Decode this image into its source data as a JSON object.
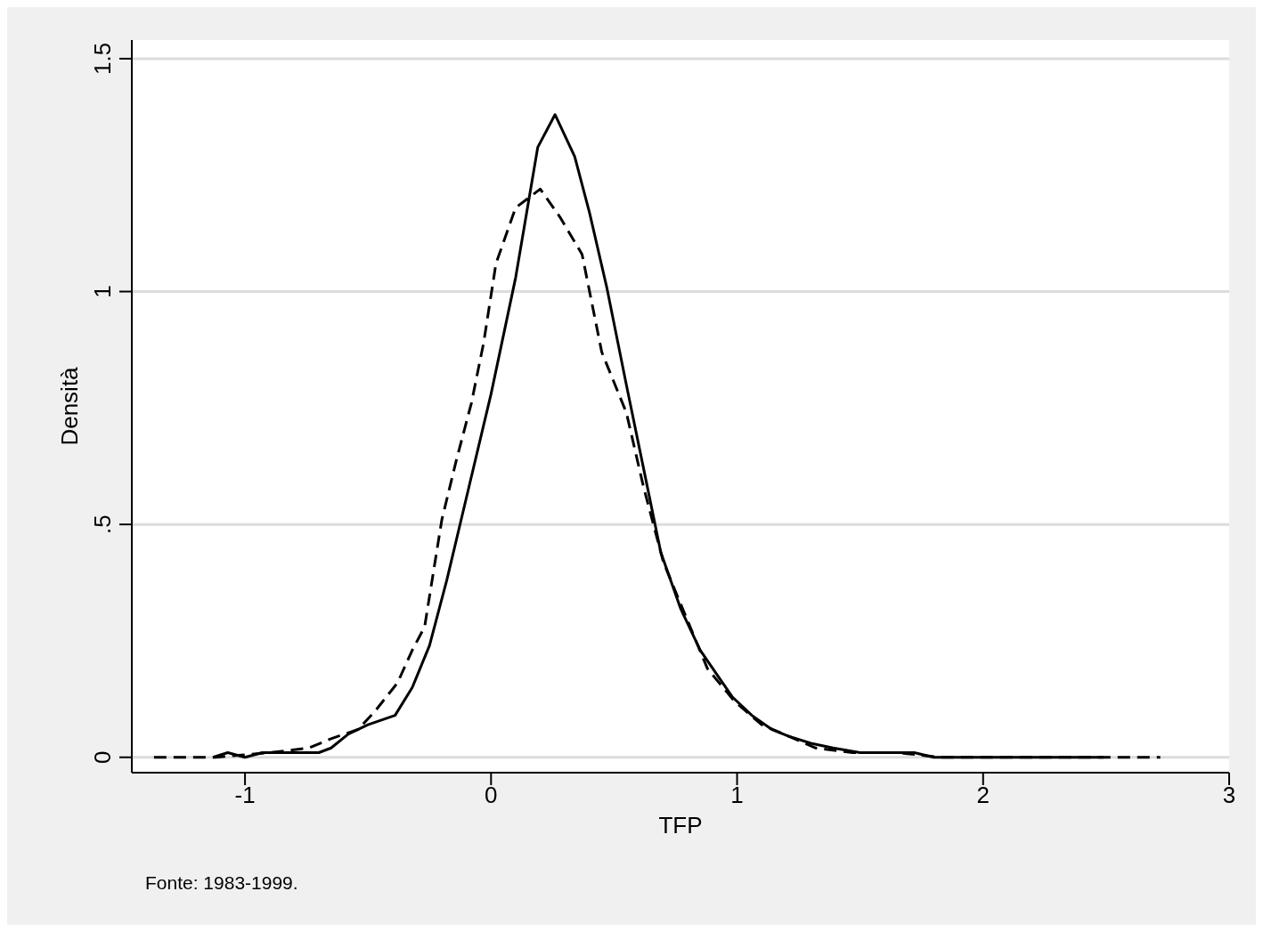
{
  "chart_data": {
    "type": "line",
    "xlabel": "TFP",
    "ylabel": "Densità",
    "annotations": [
      "Fonte: 1983-1999."
    ],
    "xlim": [
      -1.46,
      3
    ],
    "xticks": [
      -1,
      0,
      1,
      2,
      3
    ],
    "ylim": [
      -0.033,
      1.54
    ],
    "yticks": [
      0,
      {
        "value": 0.5,
        "label": ".5"
      },
      1,
      1.5
    ],
    "grid": "y",
    "marker": "none",
    "series": [
      {
        "color": "#000000",
        "line_style": "solid",
        "x": [
          -1.13,
          -1.07,
          -1.0,
          -0.93,
          -0.8,
          -0.7,
          -0.65,
          -0.58,
          -0.5,
          -0.39,
          -0.32,
          -0.25,
          -0.18,
          -0.09,
          0,
          0.1,
          0.19,
          0.26,
          0.34,
          0.4,
          0.47,
          0.55,
          0.62,
          0.69,
          0.77,
          0.85,
          0.98,
          1.06,
          1.14,
          1.21,
          1.3,
          1.39,
          1.5,
          1.65,
          1.72,
          1.8,
          2.01,
          2.49
        ],
        "values": [
          0,
          0.01,
          0,
          0.01,
          0.01,
          0.01,
          0.02,
          0.05,
          0.07,
          0.09,
          0.15,
          0.24,
          0.38,
          0.58,
          0.78,
          1.03,
          1.31,
          1.38,
          1.29,
          1.17,
          1.01,
          0.8,
          0.62,
          0.44,
          0.32,
          0.23,
          0.13,
          0.09,
          0.06,
          0.045,
          0.03,
          0.02,
          0.01,
          0.01,
          0.01,
          0,
          0,
          0
        ]
      },
      {
        "color": "#000000",
        "line_style": "dashed",
        "x": [
          -1.37,
          -1.12,
          -0.9,
          -0.74,
          -0.65,
          -0.54,
          -0.47,
          -0.38,
          -0.32,
          -0.27,
          -0.2,
          -0.14,
          -0.08,
          -0.03,
          0.02,
          0.1,
          0.2,
          0.28,
          0.37,
          0.45,
          0.55,
          0.62,
          0.7,
          0.77,
          0.88,
          0.99,
          1.1,
          1.21,
          1.32,
          1.47,
          1.65,
          1.83,
          2.2,
          2.72
        ],
        "values": [
          0,
          0,
          0.01,
          0.02,
          0.04,
          0.06,
          0.1,
          0.16,
          0.23,
          0.28,
          0.51,
          0.64,
          0.76,
          0.89,
          1.06,
          1.18,
          1.22,
          1.16,
          1.08,
          0.87,
          0.74,
          0.58,
          0.42,
          0.33,
          0.19,
          0.12,
          0.07,
          0.045,
          0.02,
          0.01,
          0.01,
          0,
          0,
          0
        ]
      }
    ]
  }
}
